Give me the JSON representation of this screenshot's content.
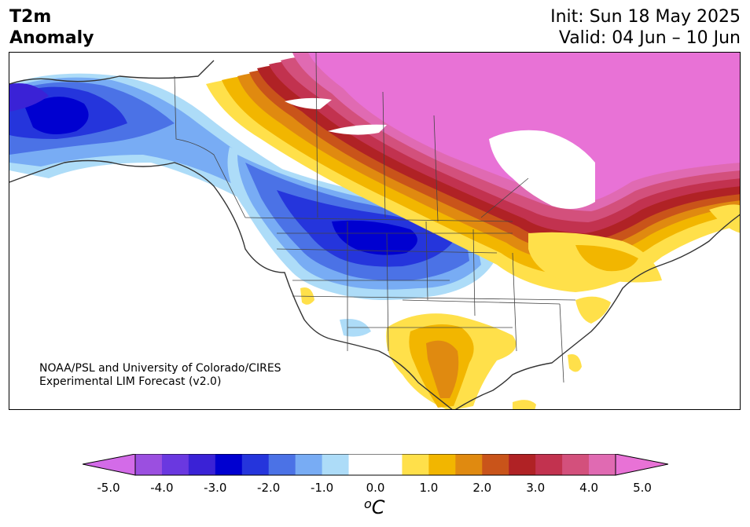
{
  "title": {
    "left_line1": "T2m",
    "left_line2": "Anomaly",
    "right_line1": "Init: Sun 18 May 2025",
    "right_line2": "Valid: 04 Jun – 10 Jun"
  },
  "credit": {
    "line1": "NOAA/PSL and University of Colorado/CIRES",
    "line2": "Experimental LIM Forecast (v2.0)"
  },
  "colorbar": {
    "unit": "°C",
    "unit_display": "oC",
    "ticks": [
      "-5.0",
      "-4.0",
      "-3.0",
      "-2.0",
      "-1.0",
      "0.0",
      "1.0",
      "2.0",
      "3.0",
      "4.0",
      "5.0"
    ],
    "colors": [
      "#d36be8",
      "#9b4fe0",
      "#6a38e0",
      "#3a22d6",
      "#0000d0",
      "#2535dc",
      "#4b72e6",
      "#78acf4",
      "#addcf8",
      "#ffffff",
      "#ffffff",
      "#ffe04a",
      "#f2b600",
      "#e08a10",
      "#c9541a",
      "#b02225",
      "#c2324f",
      "#d3507c",
      "#e06ab2",
      "#e872d6"
    ]
  },
  "map": {
    "region": "North America",
    "colors": {
      "deep_blue": "#0000d0",
      "blue": "#2535dc",
      "mid_blue": "#4b72e6",
      "light_blue": "#78acf4",
      "pale_blue": "#addcf8",
      "yellow": "#ffe04a",
      "gold": "#f2b600",
      "orange": "#e08a10",
      "dark_orange": "#c9541a",
      "red": "#b02225",
      "crimson": "#c2324f",
      "rose": "#d3507c",
      "pink": "#e06ab2",
      "magenta": "#e872d6"
    }
  }
}
